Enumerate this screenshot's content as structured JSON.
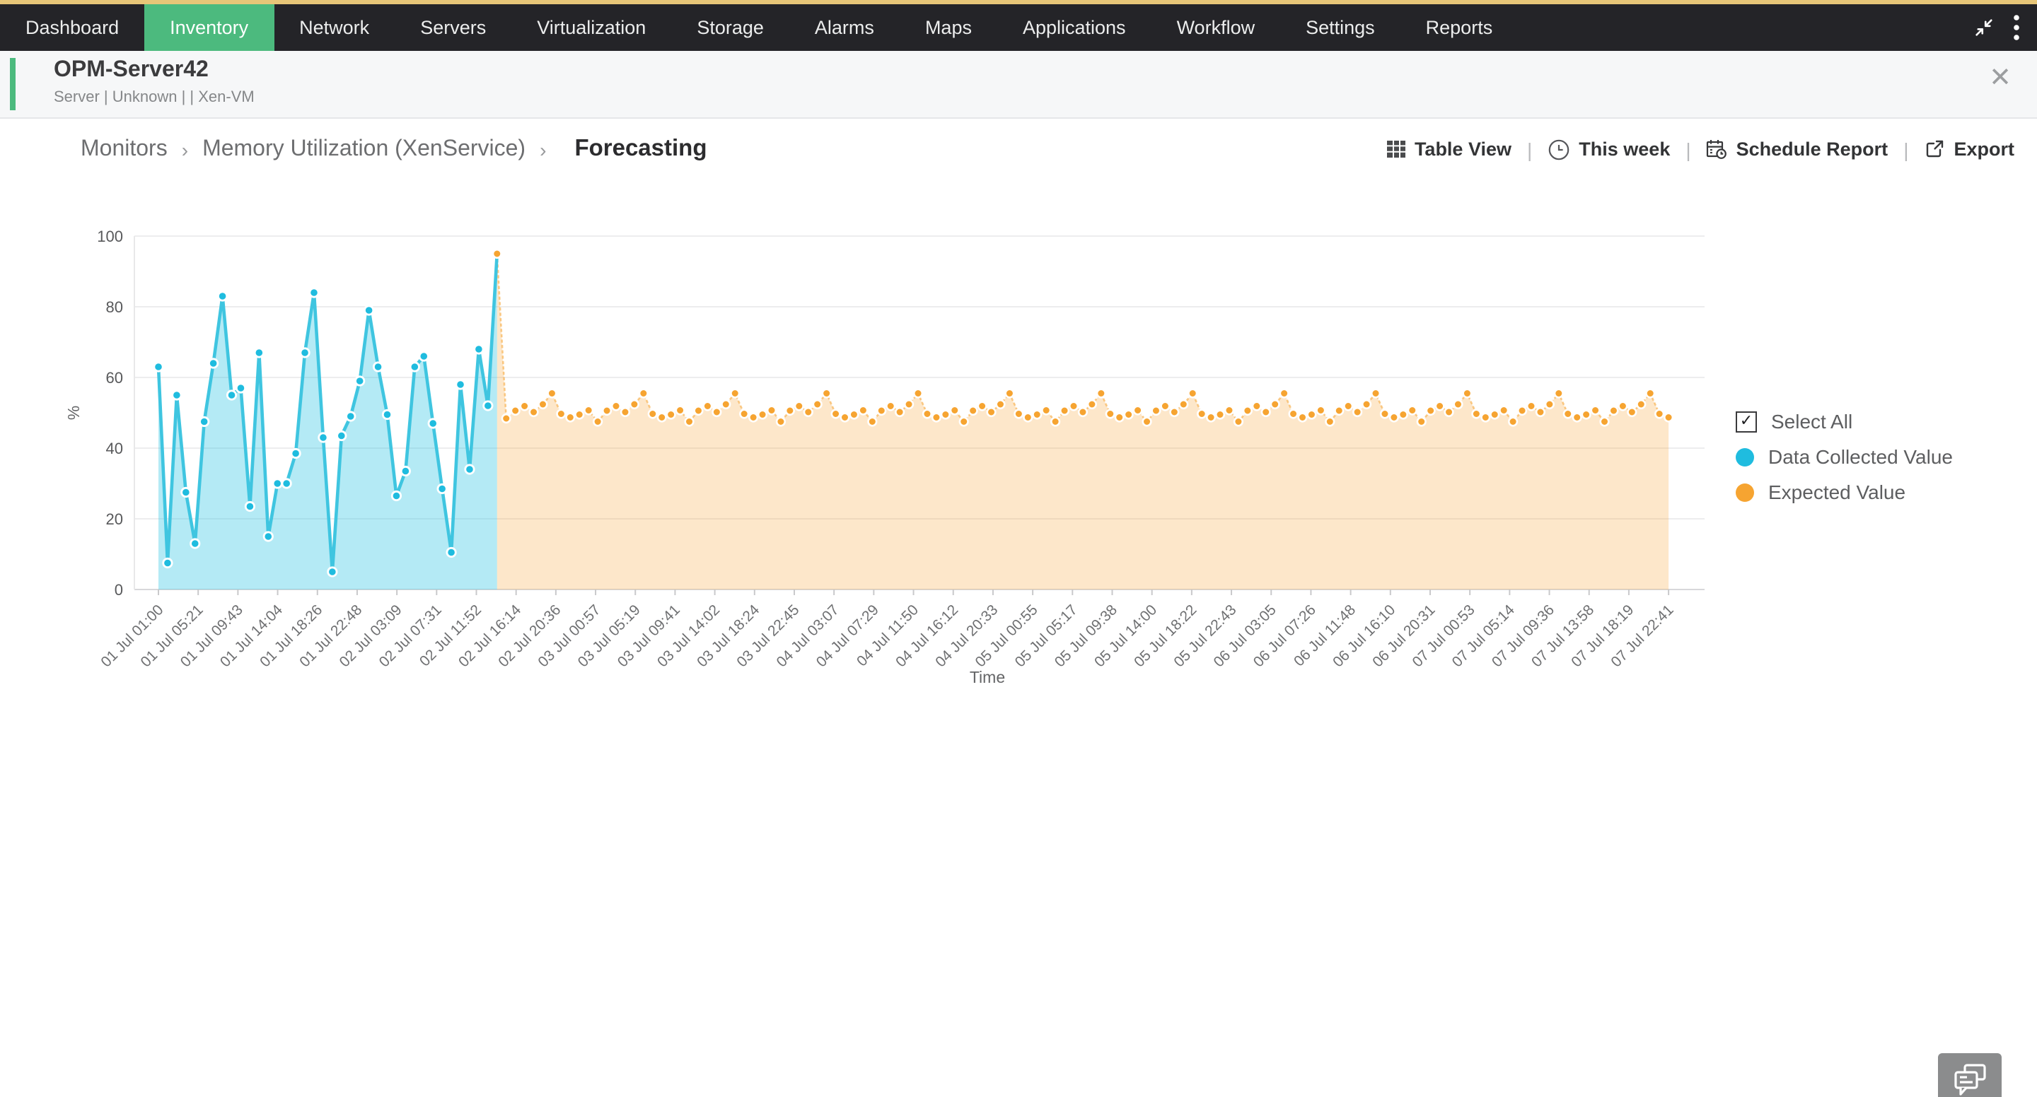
{
  "nav": {
    "items": [
      {
        "label": "Dashboard",
        "active": false
      },
      {
        "label": "Inventory",
        "active": true
      },
      {
        "label": "Network",
        "active": false
      },
      {
        "label": "Servers",
        "active": false
      },
      {
        "label": "Virtualization",
        "active": false
      },
      {
        "label": "Storage",
        "active": false
      },
      {
        "label": "Alarms",
        "active": false
      },
      {
        "label": "Maps",
        "active": false
      },
      {
        "label": "Applications",
        "active": false
      },
      {
        "label": "Workflow",
        "active": false
      },
      {
        "label": "Settings",
        "active": false
      },
      {
        "label": "Reports",
        "active": false
      }
    ]
  },
  "device_header": {
    "name": "OPM-Server42",
    "meta": "Server | Unknown |  | Xen-VM",
    "close_label": "✕"
  },
  "breadcrumb": {
    "items": [
      "Monitors",
      "Memory Utilization (XenService)",
      "Forecasting"
    ],
    "separator": "›"
  },
  "toolbar": {
    "table_view": "Table View",
    "time_range": "This week",
    "schedule_report": "Schedule Report",
    "export": "Export",
    "separator": "|"
  },
  "legend": {
    "select_all": "Select All",
    "select_all_checked": true,
    "check_glyph": "✓"
  },
  "colors": {
    "accent_green": "#4cba7e",
    "nav_bg": "#242428",
    "top_line": "#e7c678",
    "collected": "#1fbcdf",
    "expected": "#f6a431"
  },
  "chart_data": {
    "type": "area",
    "title": "",
    "xlabel": "Time",
    "ylabel": "%",
    "ylim": [
      0,
      100
    ],
    "yticks": [
      0,
      20,
      40,
      60,
      80,
      100
    ],
    "grid": true,
    "legend_position": "right",
    "x_tick_labels": [
      "01 Jul 01:00",
      "01 Jul 05:21",
      "01 Jul 09:43",
      "01 Jul 14:04",
      "01 Jul 18:26",
      "01 Jul 22:48",
      "02 Jul 03:09",
      "02 Jul 07:31",
      "02 Jul 11:52",
      "02 Jul 16:14",
      "02 Jul 20:36",
      "03 Jul 00:57",
      "03 Jul 05:19",
      "03 Jul 09:41",
      "03 Jul 14:02",
      "03 Jul 18:24",
      "03 Jul 22:45",
      "04 Jul 03:07",
      "04 Jul 07:29",
      "04 Jul 11:50",
      "04 Jul 16:12",
      "04 Jul 20:33",
      "05 Jul 00:55",
      "05 Jul 05:17",
      "05 Jul 09:38",
      "05 Jul 14:00",
      "05 Jul 18:22",
      "05 Jul 22:43",
      "06 Jul 03:05",
      "06 Jul 07:26",
      "06 Jul 11:48",
      "06 Jul 16:10",
      "06 Jul 20:31",
      "07 Jul 00:53",
      "07 Jul 05:14",
      "07 Jul 09:36",
      "07 Jul 13:58",
      "07 Jul 18:19",
      "07 Jul 22:41"
    ],
    "series": [
      {
        "name": "Data Collected Value",
        "color": "#1fbcdf",
        "line": "#3fc5e0",
        "fill": "rgba(41,195,226,0.35)",
        "values": [
          63,
          7.5,
          55,
          27.5,
          13,
          47.5,
          64,
          83,
          55,
          57,
          23.5,
          67,
          15,
          30,
          30,
          38.5,
          67,
          84,
          43,
          5,
          43.5,
          49,
          59,
          79,
          63,
          49.5,
          26.5,
          33.5,
          63,
          66,
          47,
          28.5,
          10.5,
          58,
          34,
          68,
          52
        ]
      },
      {
        "name": "Expected Value",
        "color": "#f6a431",
        "line": "#f6a431",
        "fill": "rgba(246,164,49,0.26)",
        "values": [
          95,
          48.4,
          50.6,
          51.9,
          50.2,
          52.4,
          55.5,
          49.7,
          48.7,
          49.5,
          50.7,
          47.5,
          50.6,
          51.9,
          50.2,
          52.4,
          55.5,
          49.7,
          48.7,
          49.5,
          50.7,
          47.5,
          50.6,
          51.9,
          50.2,
          52.4,
          55.5,
          49.7,
          48.7,
          49.5,
          50.7,
          47.5,
          50.6,
          51.9,
          50.2,
          52.4,
          55.5,
          49.7,
          48.7,
          49.5,
          50.7,
          47.5,
          50.6,
          51.9,
          50.2,
          52.4,
          55.5,
          49.7,
          48.7,
          49.5,
          50.7,
          47.5,
          50.6,
          51.9,
          50.2,
          52.4,
          55.5,
          49.7,
          48.7,
          49.5,
          50.7,
          47.5,
          50.6,
          51.9,
          50.2,
          52.4,
          55.5,
          49.7,
          48.7,
          49.5,
          50.7,
          47.5,
          50.6,
          51.9,
          50.2,
          52.4,
          55.5,
          49.7,
          48.7,
          49.5,
          50.7,
          47.5,
          50.6,
          51.9,
          50.2,
          52.4,
          55.5,
          49.7,
          48.7,
          49.5,
          50.7,
          47.5,
          50.6,
          51.9,
          50.2,
          52.4,
          55.5,
          49.7,
          48.7,
          49.5,
          50.7,
          47.5,
          50.6,
          51.9,
          50.2,
          52.4,
          55.5,
          49.7,
          48.7,
          49.5,
          50.7,
          47.5,
          50.6,
          51.9,
          50.2,
          52.4,
          55.5,
          49.7,
          48.7,
          49.5,
          50.7,
          47.5,
          50.6,
          51.9,
          50.2,
          52.4,
          55.5,
          49.7,
          48.7
        ]
      }
    ]
  }
}
